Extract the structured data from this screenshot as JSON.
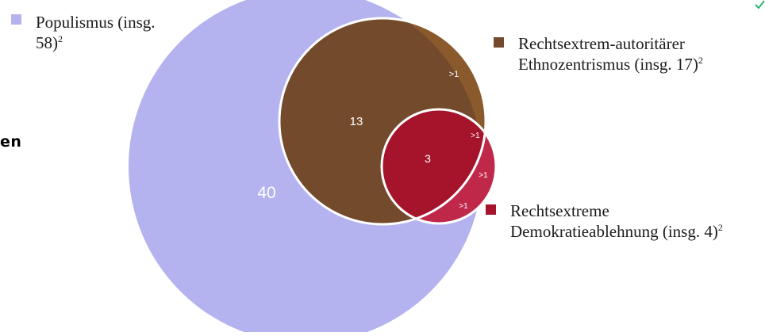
{
  "side_text": "en",
  "legend": [
    {
      "line1": "Populismus (insg.",
      "line2": "58)",
      "sup": "2",
      "color": "#b4b3f0"
    },
    {
      "line1": "Rechtsextrem-autoritärer",
      "line2": "Ethnozentrismus (insg. 17)",
      "sup": "2",
      "color": "#734a2c"
    },
    {
      "line1": "Rechtsextreme",
      "line2": "Demokratieablehnung (insg. 4)",
      "sup": "2",
      "color": "#a5142b"
    }
  ],
  "regions": {
    "populismus_only": "40",
    "ethno_populismus": "13",
    "all_three": "3",
    "ethno_only": ">1",
    "ethno_demo": ">1",
    "demo_populismus": ">1",
    "demo_only": ">1"
  },
  "colors": {
    "populismus": "#b4b3f0",
    "ethno": "#734a2c",
    "ethno_light": "#8a5a2c",
    "demo": "#a5142b",
    "demo_light": "#c0284a",
    "outline": "#ffffff",
    "accent": "#2bb673"
  }
}
